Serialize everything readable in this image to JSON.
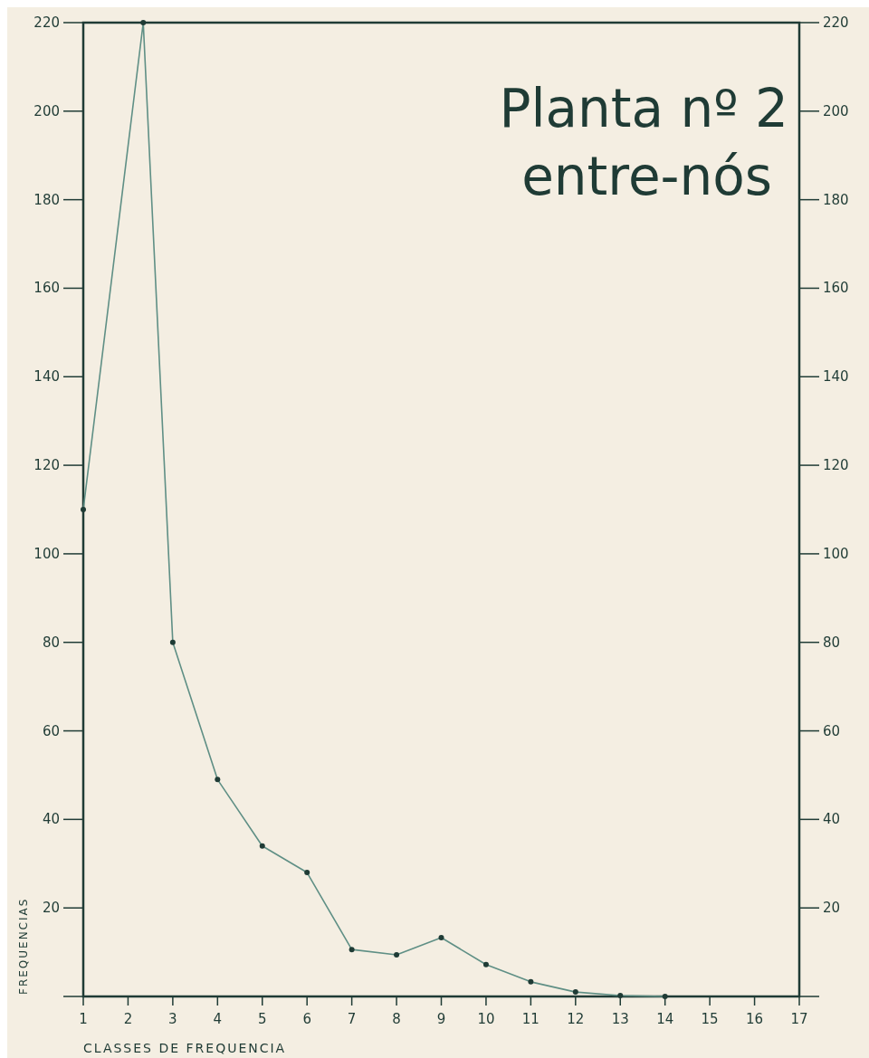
{
  "chart_data": {
    "type": "line",
    "title": "Planta nº 2",
    "subtitle": "entre-nós",
    "xlabel": "CLASSES DE FREQUENCIA",
    "ylabel": "FREQUENCIAS",
    "x": [
      1,
      2.34,
      3,
      4,
      5,
      6,
      7,
      8,
      9,
      10,
      11,
      12,
      13,
      14
    ],
    "series": [
      {
        "color": "#5f8f85",
        "values": [
          110,
          220,
          80,
          49,
          34,
          28,
          10.6,
          9.4,
          13.3,
          7.2,
          3.3,
          1,
          0.2,
          0
        ]
      }
    ],
    "xlim": [
      1,
      17
    ],
    "xticks": [
      1,
      2,
      3,
      4,
      5,
      6,
      7,
      8,
      9,
      10,
      11,
      12,
      13,
      14,
      15,
      16,
      17
    ],
    "ylim": [
      0,
      220
    ],
    "yticks": [
      {
        "value": 0,
        "label": null
      },
      20,
      40,
      60,
      80,
      100,
      120,
      140,
      160,
      180,
      200,
      220
    ],
    "y2lim": [
      0,
      220
    ],
    "y2ticks": [
      {
        "value": 0,
        "label": null
      },
      20,
      40,
      60,
      80,
      100,
      120,
      140,
      160,
      180,
      200,
      220
    ],
    "grid": false,
    "marker": "circle",
    "line_style": "solid"
  }
}
